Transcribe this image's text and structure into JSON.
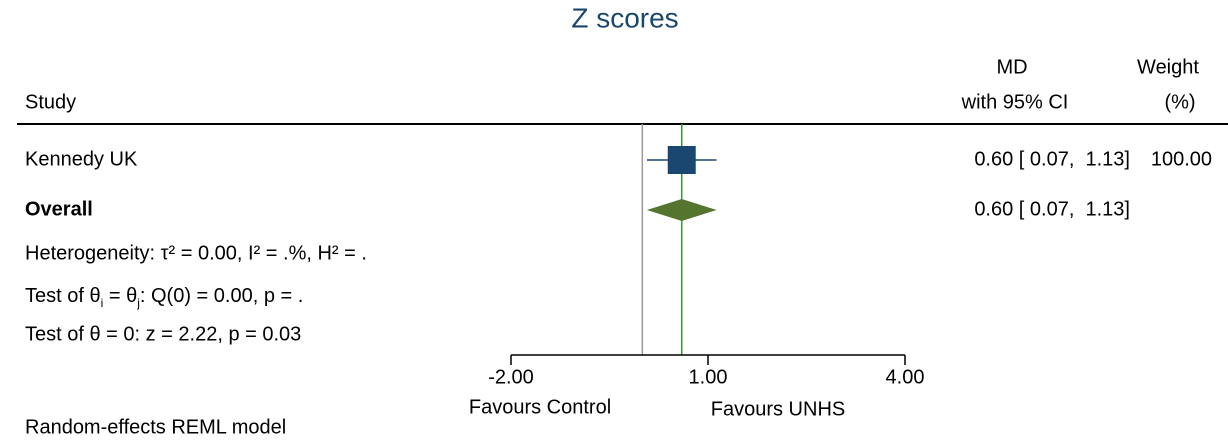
{
  "chart_data": {
    "type": "forest",
    "title": "Z scores",
    "study_header": "Study",
    "effect_header": [
      "MD",
      "with 95% CI"
    ],
    "weight_header": [
      "Weight",
      "(%)"
    ],
    "categories": [
      "Kennedy UK"
    ],
    "values": [
      0.6
    ],
    "ci_lower": [
      0.07
    ],
    "ci_upper": [
      1.13
    ],
    "value_labels": [
      "0.60 [ 0.07,  1.13]"
    ],
    "weights": [
      100
    ],
    "weight_labels": [
      "100.00"
    ],
    "overall": {
      "label": "Overall",
      "value": 0.6,
      "ci_lower": 0.07,
      "ci_upper": 1.13,
      "value_label": "0.60 [ 0.07,  1.13]"
    },
    "notes": [
      "Heterogeneity: τ² = 0.00, I² = .%, H² = .",
      [
        "Test of θ",
        "i",
        " = θ",
        "j",
        ": Q(0) = 0.00, p = ."
      ],
      "Test of θ = 0: z = 2.22, p = 0.03"
    ],
    "xlim": [
      -2,
      4
    ],
    "xticks": [
      {
        "value": -2,
        "label": "-2.00"
      },
      {
        "value": 1,
        "label": "1.00"
      },
      {
        "value": 4,
        "label": "4.00"
      }
    ],
    "null_line": 0,
    "x_labels": [
      "Favours Control",
      "Favours UNHS"
    ],
    "model_note": "Random-effects REML model",
    "color": "#1a476f",
    "overall_color": "#55752f",
    "overall_line_color": "#2e9a2e",
    "null_line_color": "#9a9a9a"
  }
}
